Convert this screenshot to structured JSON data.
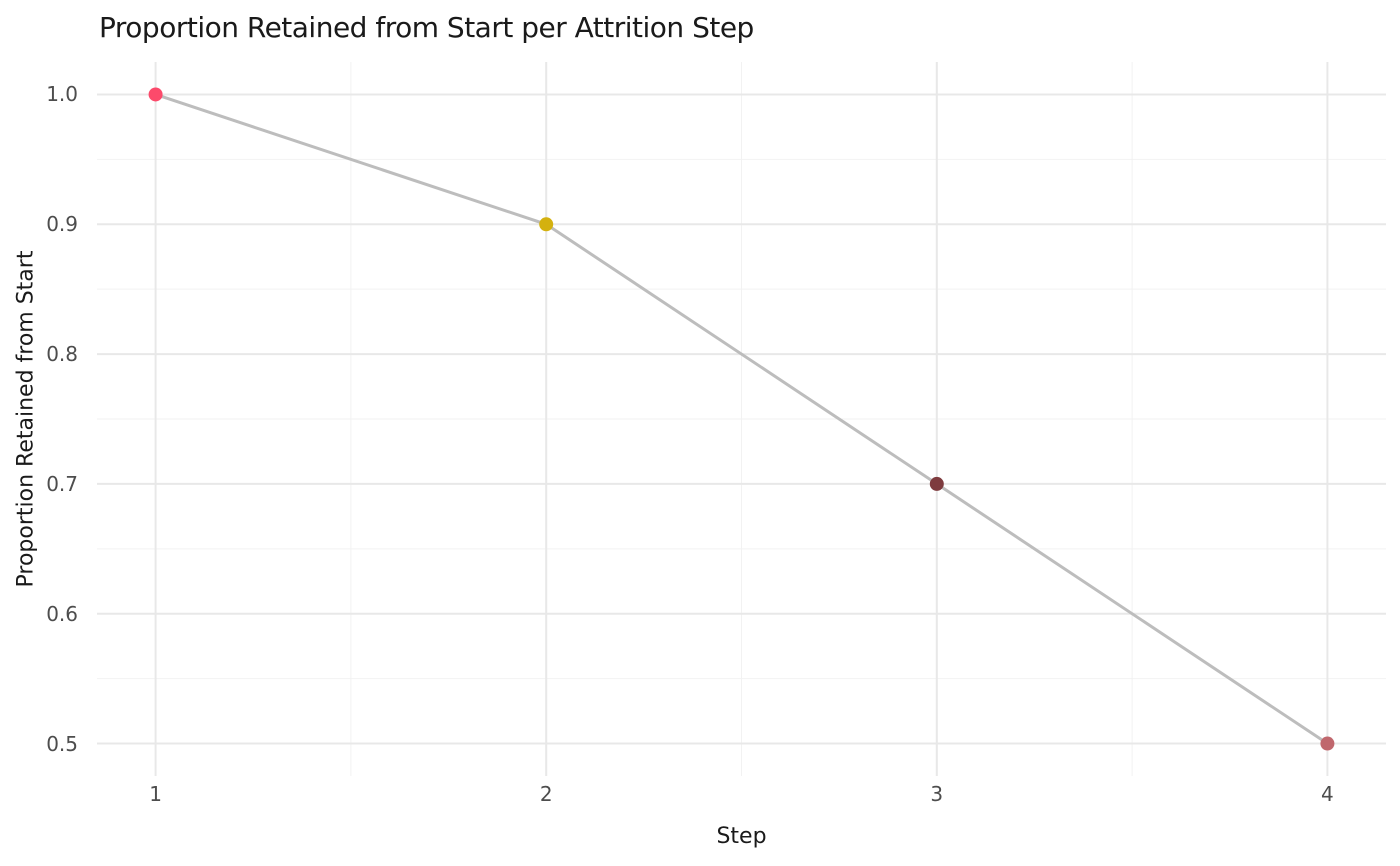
{
  "chart_data": {
    "type": "line",
    "title": "Proportion Retained from Start per Attrition Step",
    "xlabel": "Step",
    "ylabel": "Proportion Retained from Start",
    "x": [
      1,
      2,
      3,
      4
    ],
    "y": [
      1.0,
      0.9,
      0.7,
      0.5
    ],
    "point_colors": [
      "#FC4A6B",
      "#D4B10F",
      "#7E3B3E",
      "#C0676D"
    ],
    "point_radius": 7,
    "line_color": "#BDBDBD",
    "line_width": 3,
    "x_ticks": [
      {
        "value": 1,
        "label": "1"
      },
      {
        "value": 2,
        "label": "2"
      },
      {
        "value": 3,
        "label": "3"
      },
      {
        "value": 4,
        "label": "4"
      }
    ],
    "y_ticks": [
      {
        "value": 0.5,
        "label": "0.5"
      },
      {
        "value": 0.6,
        "label": "0.6"
      },
      {
        "value": 0.7,
        "label": "0.7"
      },
      {
        "value": 0.8,
        "label": "0.8"
      },
      {
        "value": 0.9,
        "label": "0.9"
      },
      {
        "value": 1.0,
        "label": "1.0"
      }
    ],
    "x_minor_gridlines": [
      1.5,
      2.5,
      3.5
    ],
    "y_minor_gridlines": [
      0.55,
      0.65,
      0.75,
      0.85,
      0.95
    ],
    "xlim": [
      0.85,
      4.15
    ],
    "ylim": [
      0.475,
      1.025
    ],
    "grid": true,
    "legend": "none",
    "background_color": "#FFFFFF",
    "major_grid_color": "#E8E8E8",
    "minor_grid_color": "#F2F2F2",
    "tick_label_color": "#4D4D4D",
    "text_color": "#1A1A1A"
  }
}
